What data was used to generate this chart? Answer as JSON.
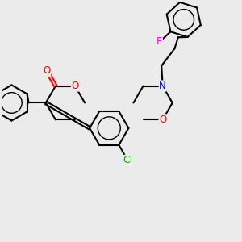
{
  "background_color": "#ebebeb",
  "bond_color": "#000000",
  "atom_colors": {
    "O": "#ff0000",
    "N": "#0000ff",
    "Cl": "#00aa00",
    "F": "#ff00ff"
  },
  "figsize": [
    3.0,
    3.0
  ],
  "dpi": 100,
  "xlim": [
    0,
    10
  ],
  "ylim": [
    0,
    10
  ],
  "lw": 1.5,
  "fs": 8.5
}
